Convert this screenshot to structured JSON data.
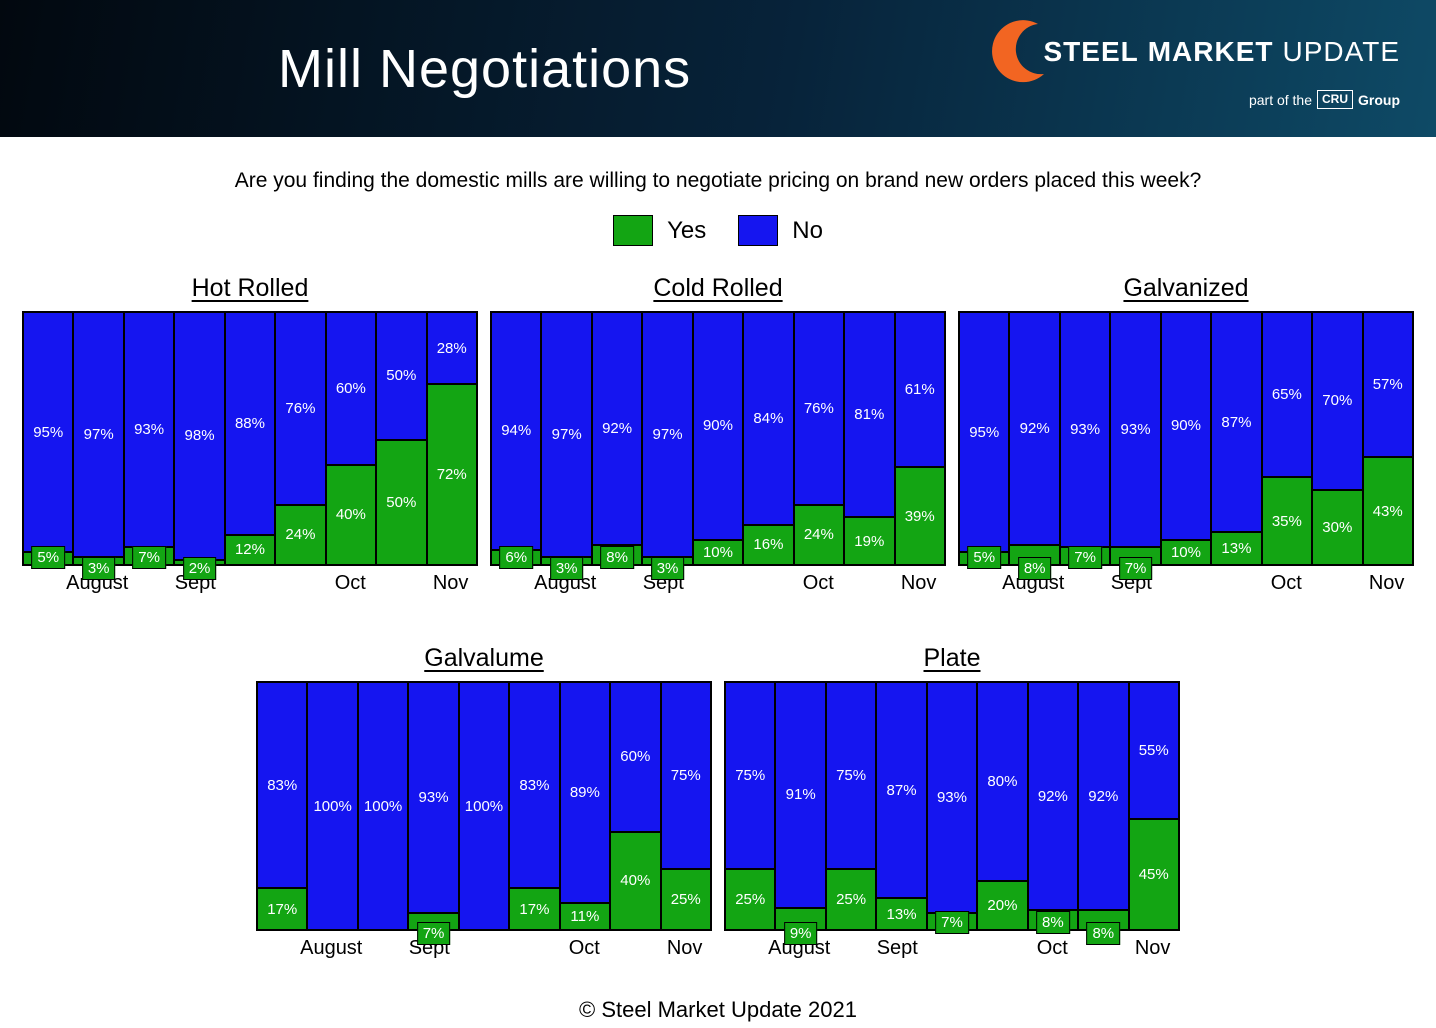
{
  "header": {
    "title": "Mill Negotiations",
    "logo": {
      "steel": "STEEL",
      "market": "MARKET",
      "update": "UPDATE",
      "tagline_pre": "part of the",
      "tagline_box": "CRU",
      "tagline_post": "Group"
    }
  },
  "question": "Are you finding the domestic mills are willing to negotiate pricing on brand new orders placed this week?",
  "legend": {
    "yes_label": "Yes",
    "no_label": "No"
  },
  "colors": {
    "yes": "#13a513",
    "no": "#1515f0",
    "logo_orange": "#f26522"
  },
  "footer": "© Steel Market Update 2021",
  "chart_data": [
    {
      "type": "bar",
      "stacked": true,
      "title": "Hot Rolled",
      "ylim": [
        0,
        100
      ],
      "x_labels": [
        "August",
        "Sept",
        "Oct",
        "Nov"
      ],
      "series": [
        {
          "name": "Yes",
          "values": [
            5,
            3,
            7,
            2,
            12,
            24,
            40,
            50,
            72
          ]
        },
        {
          "name": "No",
          "values": [
            95,
            97,
            93,
            98,
            88,
            76,
            60,
            50,
            28
          ]
        }
      ]
    },
    {
      "type": "bar",
      "stacked": true,
      "title": "Cold Rolled",
      "ylim": [
        0,
        100
      ],
      "x_labels": [
        "August",
        "Sept",
        "Oct",
        "Nov"
      ],
      "series": [
        {
          "name": "Yes",
          "values": [
            6,
            3,
            8,
            3,
            10,
            16,
            24,
            19,
            39
          ]
        },
        {
          "name": "No",
          "values": [
            94,
            97,
            92,
            97,
            90,
            84,
            76,
            81,
            61
          ]
        }
      ]
    },
    {
      "type": "bar",
      "stacked": true,
      "title": "Galvanized",
      "ylim": [
        0,
        100
      ],
      "x_labels": [
        "August",
        "Sept",
        "Oct",
        "Nov"
      ],
      "series": [
        {
          "name": "Yes",
          "values": [
            5,
            8,
            7,
            7,
            10,
            13,
            35,
            30,
            43
          ]
        },
        {
          "name": "No",
          "values": [
            95,
            92,
            93,
            93,
            90,
            87,
            65,
            70,
            57
          ]
        }
      ]
    },
    {
      "type": "bar",
      "stacked": true,
      "title": "Galvalume",
      "ylim": [
        0,
        100
      ],
      "x_labels": [
        "August",
        "Sept",
        "Oct",
        "Nov"
      ],
      "series": [
        {
          "name": "Yes",
          "values": [
            17,
            0,
            0,
            7,
            0,
            17,
            11,
            40,
            25
          ]
        },
        {
          "name": "No",
          "values": [
            83,
            100,
            100,
            93,
            100,
            83,
            89,
            60,
            75
          ]
        }
      ]
    },
    {
      "type": "bar",
      "stacked": true,
      "title": "Plate",
      "ylim": [
        0,
        100
      ],
      "x_labels": [
        "August",
        "Sept",
        "Oct",
        "Nov"
      ],
      "series": [
        {
          "name": "Yes",
          "values": [
            25,
            9,
            25,
            13,
            7,
            20,
            8,
            8,
            45
          ]
        },
        {
          "name": "No",
          "values": [
            75,
            91,
            75,
            87,
            93,
            80,
            92,
            92,
            55
          ]
        }
      ]
    }
  ]
}
